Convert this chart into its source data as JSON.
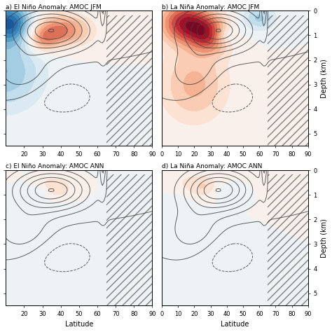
{
  "titles": [
    "a) El Niño Anomaly: AMOC JFM",
    "b) La Niña Anomaly: AMOC JFM",
    "c) El Niño Anomaly: AMOC ANN",
    "d) La Niña Anomaly: AMOC ANN"
  ],
  "xlim_left": [
    10,
    90
  ],
  "xlim_right": [
    0,
    90
  ],
  "ylim": [
    5.5,
    0
  ],
  "xticks_left": [
    20,
    30,
    40,
    50,
    60,
    70,
    80,
    90
  ],
  "xticks_right": [
    0,
    10,
    20,
    30,
    40,
    50,
    60,
    70,
    80,
    90
  ],
  "yticks": [
    0,
    1,
    2,
    3,
    4,
    5
  ],
  "xlabel": "Latitude",
  "ylabel": "Depth (km)",
  "hatch_pattern": "///",
  "colormap": "RdBu_r",
  "vmin": -1.5,
  "vmax": 1.5,
  "contour_color": "#444444",
  "background_color": "white",
  "figsize": [
    4.74,
    4.74
  ],
  "dpi": 100,
  "hatch_lat_start": 65,
  "hatch_depth_start": 0.18,
  "shelf_lat": 63
}
